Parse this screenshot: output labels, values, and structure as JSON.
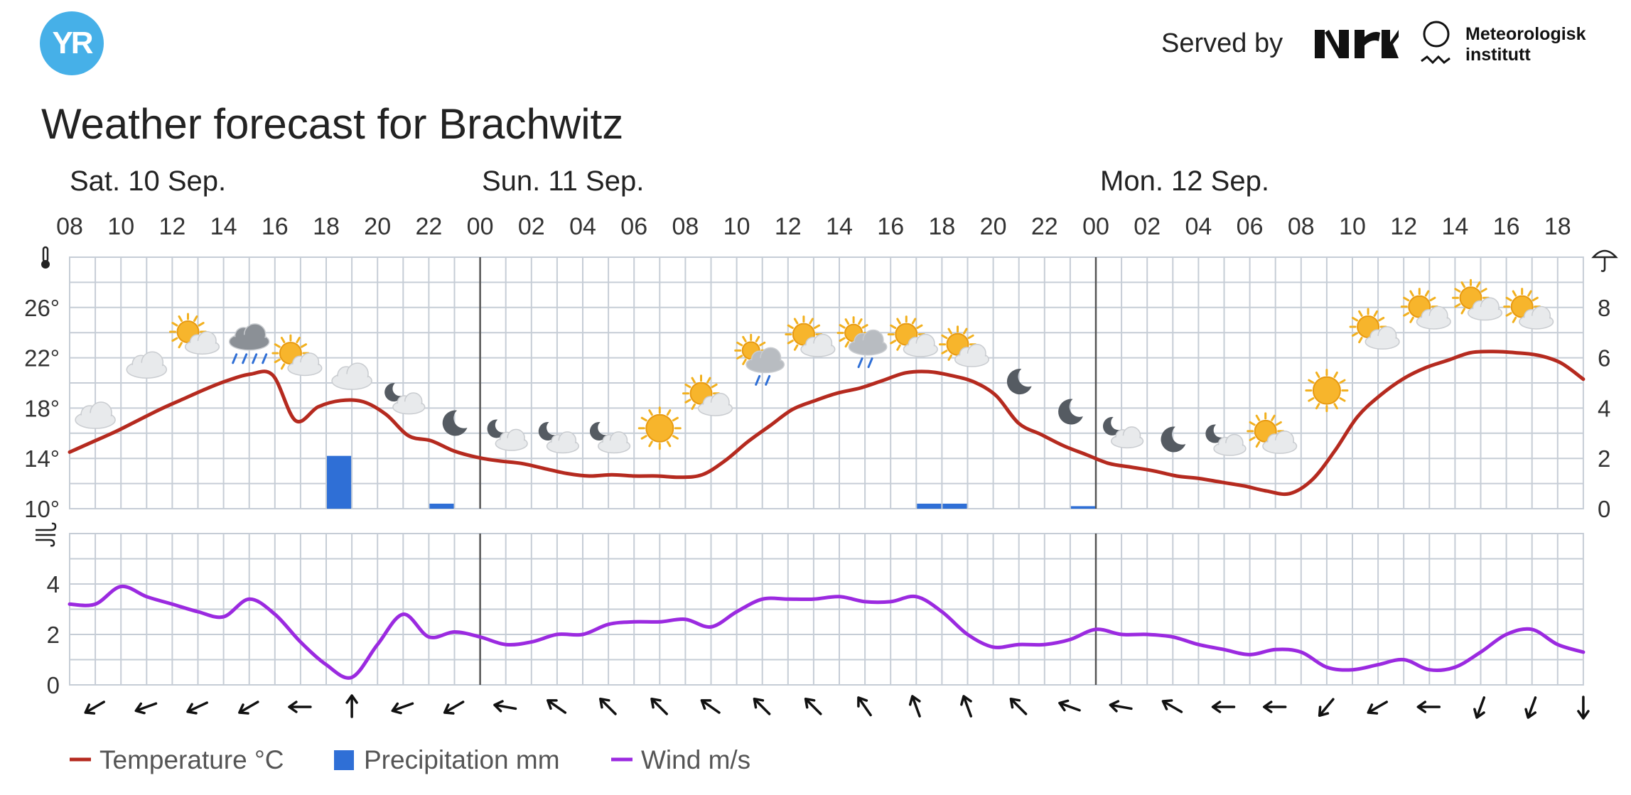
{
  "header": {
    "logo_text": "YR",
    "served_by": "Served by",
    "nrk_logo": "NRK",
    "met_line1": "Meteorologisk",
    "met_line2": "institutt",
    "title": "Weather forecast for Brachwitz"
  },
  "chart_data": {
    "type": "line",
    "day_labels": [
      "Sat. 10 Sep.",
      "Sun. 11 Sep.",
      "Mon. 12 Sep."
    ],
    "hour_ticks": [
      "08",
      "10",
      "12",
      "14",
      "16",
      "18",
      "20",
      "22",
      "00",
      "02",
      "04",
      "06",
      "08",
      "10",
      "12",
      "14",
      "16",
      "18",
      "20",
      "22",
      "00",
      "02",
      "04",
      "06",
      "08",
      "10",
      "12",
      "14",
      "16",
      "18"
    ],
    "temperature": {
      "name": "Temperature °C",
      "color": "#b52a1f",
      "axis_ticks": [
        "10°",
        "14°",
        "18°",
        "22°",
        "26°"
      ],
      "ylim": [
        10,
        30
      ],
      "values": [
        14.5,
        15.3,
        16.1,
        17.0,
        17.9,
        18.7,
        19.5,
        20.2,
        20.7,
        20.6,
        17.0,
        18.1,
        18.6,
        18.5,
        17.5,
        15.8,
        15.4,
        14.6,
        14.1,
        13.8,
        13.6,
        13.2,
        12.8,
        12.6,
        12.7,
        12.6,
        12.6,
        12.5,
        12.7,
        13.8,
        15.3,
        16.6,
        17.9,
        18.6,
        19.2,
        19.6,
        20.2,
        20.8,
        20.9,
        20.6,
        20.1,
        19.0,
        16.8,
        15.9,
        15.0,
        14.3,
        13.6,
        13.3,
        13.0,
        12.6,
        12.4,
        12.1,
        11.8,
        11.4,
        11.2,
        12.3,
        14.6,
        17.3,
        19.0,
        20.3,
        21.2,
        21.8,
        22.4,
        22.5,
        22.4,
        22.2,
        21.6,
        20.3
      ]
    },
    "precipitation": {
      "name": "Precipitation mm",
      "color": "#2f6fd6",
      "axis_ticks": [
        "0",
        "2",
        "4",
        "6",
        "8"
      ],
      "ylim": [
        0,
        10
      ],
      "values": [
        0,
        0,
        0,
        0,
        0,
        0,
        0,
        0,
        0,
        0,
        2.1,
        0,
        0,
        0,
        0.2,
        0,
        0,
        0,
        0,
        0,
        0,
        0,
        0,
        0,
        0,
        0,
        0,
        0,
        0,
        0,
        0,
        0,
        0,
        0.2,
        0.2,
        0,
        0,
        0,
        0,
        0.1,
        0,
        0,
        0,
        0,
        0,
        0,
        0,
        0,
        0,
        0,
        0,
        0,
        0,
        0,
        0,
        0,
        0,
        0,
        0,
        0,
        0,
        0,
        0,
        0,
        0,
        0,
        0,
        0,
        0
      ]
    },
    "wind": {
      "name": "Wind m/s",
      "color": "#9b2ae0",
      "axis_ticks": [
        "0",
        "2",
        "4"
      ],
      "ylim": [
        0,
        6
      ],
      "values": [
        3.2,
        3.2,
        3.9,
        3.5,
        3.2,
        2.9,
        2.7,
        3.4,
        2.8,
        1.7,
        0.8,
        0.3,
        1.6,
        2.8,
        1.9,
        2.1,
        1.9,
        1.6,
        1.7,
        2.0,
        2.0,
        2.4,
        2.5,
        2.5,
        2.6,
        2.3,
        2.9,
        3.4,
        3.4,
        3.4,
        3.5,
        3.3,
        3.3,
        3.5,
        2.9,
        2.0,
        1.5,
        1.6,
        1.6,
        1.8,
        2.2,
        2.0,
        2.0,
        1.9,
        1.6,
        1.4,
        1.2,
        1.4,
        1.3,
        0.7,
        0.6,
        0.8,
        1.0,
        0.6,
        0.7,
        1.3,
        2.0,
        2.2,
        1.6,
        1.3
      ]
    },
    "wind_directions_deg": [
      60,
      70,
      65,
      60,
      90,
      180,
      70,
      60,
      100,
      125,
      135,
      135,
      125,
      135,
      135,
      145,
      160,
      160,
      135,
      110,
      100,
      120,
      90,
      90,
      40,
      60,
      90,
      20,
      20,
      0
    ],
    "weather_icons": [
      {
        "hour": 1,
        "icon": "cloud",
        "temp": 17.4
      },
      {
        "hour": 3,
        "icon": "cloud",
        "temp": 21.4
      },
      {
        "hour": 5,
        "icon": "partly-cloudy-day",
        "temp": 23.5
      },
      {
        "hour": 7,
        "icon": "heavy-rain-cloud",
        "temp": 23.4
      },
      {
        "hour": 9,
        "icon": "partly-cloudy-day",
        "temp": 21.8
      },
      {
        "hour": 11,
        "icon": "cloud",
        "temp": 20.5
      },
      {
        "hour": 13,
        "icon": "partly-cloudy-night",
        "temp": 18.8
      },
      {
        "hour": 15,
        "icon": "moon",
        "temp": 16.8
      },
      {
        "hour": 17,
        "icon": "partly-cloudy-night",
        "temp": 15.9
      },
      {
        "hour": 19,
        "icon": "partly-cloudy-night",
        "temp": 15.7
      },
      {
        "hour": 21,
        "icon": "partly-cloudy-night",
        "temp": 15.7
      },
      {
        "hour": 23,
        "icon": "sun",
        "temp": 16.4
      },
      {
        "hour": 25,
        "icon": "partly-cloudy-day",
        "temp": 18.6
      },
      {
        "hour": 27,
        "icon": "light-rain-partly-cloudy",
        "temp": 21.9
      },
      {
        "hour": 29,
        "icon": "partly-cloudy-day",
        "temp": 23.3
      },
      {
        "hour": 31,
        "icon": "light-rain-partly-cloudy",
        "temp": 23.3
      },
      {
        "hour": 33,
        "icon": "partly-cloudy-day",
        "temp": 23.3
      },
      {
        "hour": 35,
        "icon": "partly-cloudy-day",
        "temp": 22.5
      },
      {
        "hour": 37,
        "icon": "moon",
        "temp": 20.1
      },
      {
        "hour": 39,
        "icon": "moon",
        "temp": 17.7
      },
      {
        "hour": 41,
        "icon": "partly-cloudy-night",
        "temp": 16.1
      },
      {
        "hour": 43,
        "icon": "moon",
        "temp": 15.5
      },
      {
        "hour": 45,
        "icon": "partly-cloudy-night",
        "temp": 15.5
      },
      {
        "hour": 47,
        "icon": "partly-cloudy-day",
        "temp": 15.6
      },
      {
        "hour": 49,
        "icon": "sun",
        "temp": 19.4
      },
      {
        "hour": 51,
        "icon": "partly-cloudy-day",
        "temp": 23.9
      },
      {
        "hour": 53,
        "icon": "partly-cloudy-day",
        "temp": 25.5
      },
      {
        "hour": 55,
        "icon": "partly-cloudy-day",
        "temp": 26.2
      },
      {
        "hour": 57,
        "icon": "partly-cloudy-day",
        "temp": 25.5
      }
    ],
    "legend": [
      {
        "label": "Temperature °C",
        "kind": "line",
        "color": "#b52a1f"
      },
      {
        "label": "Precipitation mm",
        "kind": "bar",
        "color": "#2f6fd6"
      },
      {
        "label": "Wind m/s",
        "kind": "line",
        "color": "#9b2ae0"
      }
    ],
    "grid": true,
    "icons": {
      "temperature_axis": "thermometer-icon",
      "precipitation_axis": "umbrella-icon",
      "wind_axis": "wind-icon"
    }
  }
}
